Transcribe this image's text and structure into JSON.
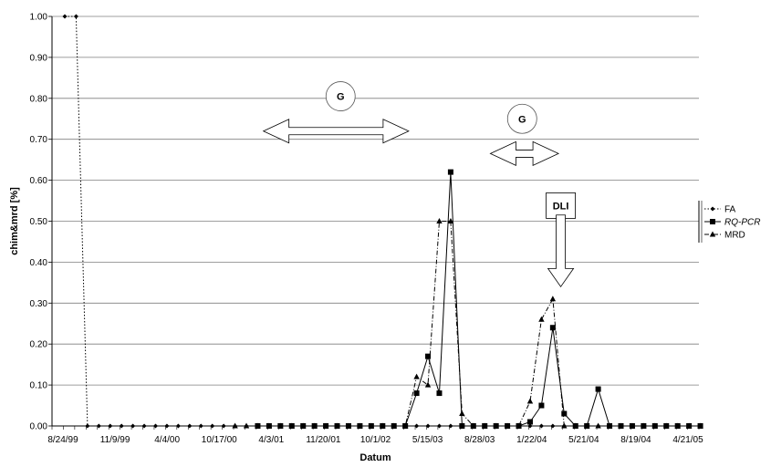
{
  "chart_data": {
    "type": "line",
    "xlabel": "Datum",
    "ylabel": "chim&mrd [%]",
    "ylim": [
      0,
      1
    ],
    "y_ticks": [
      "0.00",
      "0.10",
      "0.20",
      "0.30",
      "0.40",
      "0.50",
      "0.60",
      "0.70",
      "0.80",
      "0.90",
      "1.00"
    ],
    "x_tick_labels": [
      "8/24/99",
      "11/9/99",
      "4/4/00",
      "10/17/00",
      "4/3/01",
      "11/20/01",
      "10/1/02",
      "5/15/03",
      "8/28/03",
      "1/22/04",
      "5/21/04",
      "8/19/04",
      "4/21/05"
    ],
    "grid": "horizontal",
    "legend_position": "right",
    "series": [
      {
        "name": "FA",
        "style": "dotted",
        "marker": "diamond",
        "values": [
          1,
          1,
          0,
          0,
          0,
          0,
          0,
          0,
          0,
          0,
          0,
          0,
          0,
          0,
          0,
          0,
          0,
          0,
          0,
          0,
          0,
          0,
          0,
          0,
          0,
          0,
          0,
          0,
          0,
          0,
          0,
          0,
          0,
          0,
          0,
          0,
          0,
          0,
          0,
          0,
          0,
          0,
          0,
          0,
          0,
          0,
          0,
          0,
          0,
          0,
          0,
          0,
          0,
          0,
          0,
          0,
          0
        ]
      },
      {
        "name": "RQ-PCR",
        "style": "solid",
        "marker": "square",
        "values": [
          null,
          null,
          null,
          null,
          null,
          null,
          null,
          null,
          null,
          null,
          null,
          null,
          null,
          null,
          null,
          null,
          null,
          0,
          0,
          0,
          0,
          0,
          0,
          0,
          0,
          0,
          0,
          0,
          0,
          0,
          0,
          0.08,
          0.17,
          0.08,
          0.62,
          0,
          0,
          0,
          0,
          0,
          0,
          0.01,
          0.05,
          0.24,
          0.03,
          0,
          0,
          0.09,
          0,
          0,
          0,
          0,
          0,
          0,
          0,
          0,
          0
        ]
      },
      {
        "name": "MRD",
        "style": "dashdot",
        "marker": "triangle",
        "values": [
          null,
          null,
          null,
          null,
          null,
          null,
          null,
          null,
          null,
          null,
          null,
          null,
          null,
          null,
          null,
          0,
          0,
          0,
          0,
          0,
          0,
          0,
          0,
          0,
          0,
          0,
          0,
          0,
          0,
          0,
          0,
          0.12,
          0.1,
          0.5,
          0.5,
          0.03,
          0,
          0,
          0,
          0,
          0,
          0.06,
          0.26,
          0.31,
          0,
          0,
          0,
          0,
          0,
          0,
          0,
          0,
          0,
          0,
          0,
          0,
          0
        ]
      }
    ],
    "annotations": [
      {
        "type": "circle_label",
        "text": "G",
        "x_index": 24.3,
        "y": 0.805
      },
      {
        "type": "double_arrow",
        "x_from": 17.5,
        "x_to": 30.3,
        "y": 0.72
      },
      {
        "type": "circle_label",
        "text": "G",
        "x_index": 40.3,
        "y": 0.75
      },
      {
        "type": "double_arrow",
        "x_from": 37.5,
        "x_to": 43.5,
        "y": 0.665
      },
      {
        "type": "box_label",
        "text": "DLI",
        "x_index": 43.7,
        "y": 0.538
      },
      {
        "type": "down_arrow",
        "x_index": 43.7,
        "y_from": 0.515,
        "y_to": 0.34
      }
    ],
    "colors": {
      "line": "#000000",
      "grid": "#7f7f7f",
      "annotation_fill": "#ffffff"
    }
  }
}
